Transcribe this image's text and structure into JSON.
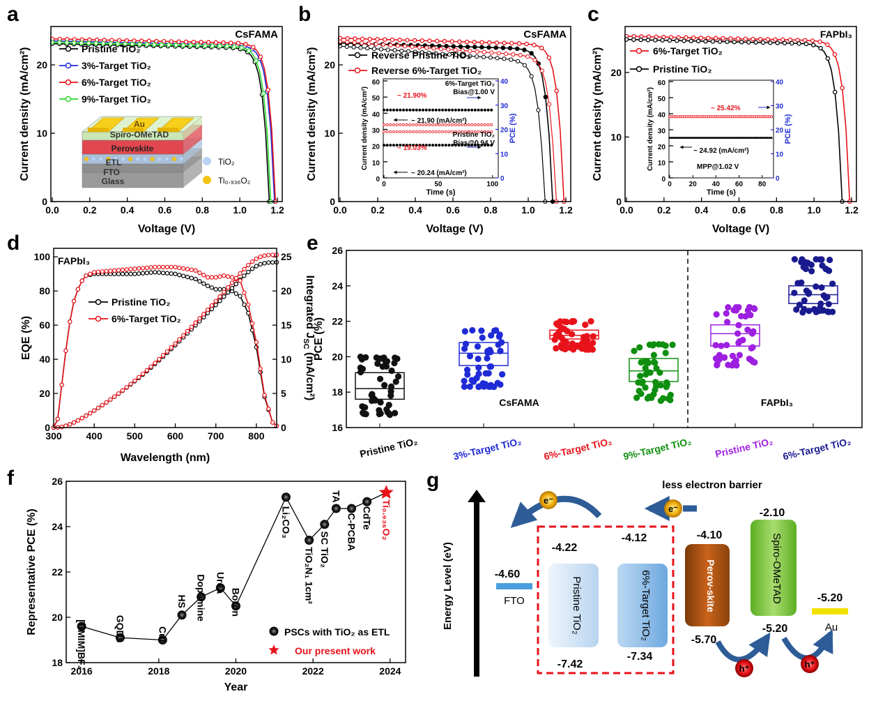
{
  "panels": {
    "a": {
      "letter": "a",
      "corner": "CsFAMA",
      "xlabel": "Voltage (V)",
      "ylabel": "Current density (mA/cm²)",
      "xticks": [
        "0.0",
        "0.2",
        "0.4",
        "0.6",
        "0.8",
        "1.0",
        "1.2"
      ],
      "yticks": [
        "0",
        "10",
        "20"
      ],
      "legend": [
        "Pristine TiO₂",
        "3%-Target TiO₂",
        "6%-Target TiO₂",
        "9%-Target TiO₂"
      ],
      "layers": [
        "Au",
        "Spiro-OMeTAD",
        "Perovskite",
        "ETL",
        "FTO",
        "Glass"
      ],
      "dots": [
        "TiO₂",
        "Ti₀.₉₃₆O₂"
      ]
    },
    "b": {
      "letter": "b",
      "corner": "CsFAMA",
      "xlabel": "Voltage (V)",
      "ylabel": "Current density (mA/cm²)",
      "xticks": [
        "0.0",
        "0.2",
        "0.4",
        "0.6",
        "0.8",
        "1.0",
        "1.2"
      ],
      "yticks": [
        "0",
        "10",
        "20"
      ],
      "legend": [
        "Reverse Pristine TiO₂",
        "Reverse 6%-Target TiO₂"
      ],
      "inset": {
        "xlabel": "Time (s)",
        "ylabel": "Current density (mA/cm²)",
        "y2label": "PCE (%)",
        "xticks": [
          "0",
          "50",
          "100"
        ],
        "yticks": [
          "0",
          "10",
          "20",
          "30",
          "40",
          "50",
          "60"
        ],
        "y2ticks": [
          "0",
          "10",
          "20",
          "30",
          "40"
        ],
        "notes": [
          "6%-Target TiO₂",
          "Bias@1.00 V",
          "~ 21.90%",
          "~ 21.90 (mA/cm²)",
          "Pristine TiO₂",
          "Bias@0.94 V",
          "~ 19.03%",
          "~ 20.24 (mA/cm²)"
        ]
      }
    },
    "c": {
      "letter": "c",
      "corner": "FAPbI₃",
      "xlabel": "Voltage (V)",
      "ylabel": "Current density (mA/cm²)",
      "xticks": [
        "0.0",
        "0.2",
        "0.4",
        "0.6",
        "0.8",
        "1.0",
        "1.2"
      ],
      "yticks": [
        "0",
        "10",
        "20"
      ],
      "legend": [
        "6%-Target TiO₂",
        "Pristine TiO₂"
      ],
      "inset": {
        "xlabel": "Time (s)",
        "ylabel": "Current density (mA/cm²)",
        "y2label": "PCE (%)",
        "xticks": [
          "0",
          "20",
          "40",
          "60",
          "80"
        ],
        "yticks": [
          "0",
          "10",
          "20",
          "30",
          "40",
          "50",
          "60"
        ],
        "y2ticks": [
          "0",
          "10",
          "20",
          "30",
          "40"
        ],
        "notes": [
          "~ 25.42%",
          "~ 24.92 (mA/cm²)",
          "MPP@1.02 V"
        ]
      }
    },
    "d": {
      "letter": "d",
      "corner": "FAPbI₃",
      "xlabel": "Wavelength (nm)",
      "ylabel": "EQE (%)",
      "y2label": "Integrated J",
      "y2sub": "SC",
      "y2unit": " (mA/cm²)",
      "xticks": [
        "300",
        "400",
        "500",
        "600",
        "700",
        "800"
      ],
      "yticks": [
        "0",
        "20",
        "40",
        "60",
        "80",
        "100"
      ],
      "y2ticks": [
        "0",
        "5",
        "10",
        "15",
        "20",
        "25"
      ],
      "legend": [
        "Pristine TiO₂",
        "6%-Target TiO₂"
      ]
    },
    "e": {
      "letter": "e",
      "ylabel": "PCE (%)",
      "yticks": [
        "16",
        "18",
        "20",
        "22",
        "24",
        "26"
      ],
      "groups": [
        "Pristine TiO₂",
        "3%-Target TiO₂",
        "6%-Target TiO₂",
        "9%-Target TiO₂",
        "Pristine TiO₂",
        "6%-Target TiO₂"
      ],
      "sections": [
        "CsFAMA",
        "FAPbI₃"
      ]
    },
    "f": {
      "letter": "f",
      "xlabel": "Year",
      "ylabel": "Representative PCE (%)",
      "xticks": [
        "2016",
        "2018",
        "2020",
        "2022",
        "2024"
      ],
      "yticks": [
        "18",
        "20",
        "22",
        "24",
        "26"
      ],
      "legend": [
        "PSCs with TiO₂ as ETL",
        "Our present work"
      ],
      "labels": [
        "[BMIM]BF₄",
        "GQDs",
        "CuI",
        "HS",
        "Dopamine",
        "Urea",
        "Boron",
        "Li₂CO₃",
        "TiO₂N₁ 1cm²",
        "SC TiO₂",
        "TA",
        "C-PCBA",
        "CdTe",
        "Ti₀.₉₃₆O₂"
      ]
    },
    "g": {
      "letter": "g",
      "yaxis": "Energy Level (eV)",
      "barrier": "less electron barrier",
      "electron": "e⁻",
      "hole": "h⁺",
      "levels": {
        "fto": "-4.60",
        "fto_label": "FTO",
        "p_cb": "-4.22",
        "p_vb": "-7.42",
        "p_label": "Pristine TiO₂",
        "t_cb": "-4.12",
        "t_vb": "-7.34",
        "t_label": "6%-Target TiO₂",
        "pv_cb": "-4.10",
        "pv_vb": "-5.70",
        "pv_label": "Perov-skite",
        "sp_cb": "-2.10",
        "sp_vb": "-5.20",
        "sp_label": "Spiro-OMeTAD",
        "au": "-5.20",
        "au_label": "Au"
      }
    }
  },
  "chart_data": [
    {
      "type": "line",
      "panel": "a",
      "xlabel": "Voltage (V)",
      "ylabel": "Current density (mA/cm²)",
      "xlim": [
        0,
        1.2
      ],
      "ylim": [
        0,
        25
      ],
      "series": [
        {
          "name": "Pristine TiO₂",
          "color": "#000000",
          "jsc": 23.1,
          "voc": 1.157
        },
        {
          "name": "3%-Target TiO₂",
          "color": "#1f2bd6",
          "jsc": 23.5,
          "voc": 1.185
        },
        {
          "name": "6%-Target TiO₂",
          "color": "#e8121a",
          "jsc": 23.8,
          "voc": 1.19
        },
        {
          "name": "9%-Target TiO₂",
          "color": "#2bd82b",
          "jsc": 23.3,
          "voc": 1.165
        }
      ]
    },
    {
      "type": "line",
      "panel": "b",
      "xlabel": "Voltage (V)",
      "ylabel": "Current density (mA/cm²)",
      "xlim": [
        0,
        1.2
      ],
      "ylim": [
        0,
        25
      ],
      "series": [
        {
          "name": "Reverse Pristine TiO₂",
          "color": "#000000",
          "jsc": 23.2,
          "voc": 1.13
        },
        {
          "name": "Reverse 6%-Target TiO₂",
          "color": "#e8121a",
          "jsc": 23.9,
          "voc": 1.19
        }
      ]
    },
    {
      "type": "line",
      "panel": "c",
      "xlabel": "Voltage (V)",
      "ylabel": "Current density (mA/cm²)",
      "xlim": [
        0,
        1.2
      ],
      "ylim": [
        0,
        27
      ],
      "series": [
        {
          "name": "6%-Target TiO₂",
          "color": "#e8121a",
          "jsc": 25.6,
          "voc": 1.19
        },
        {
          "name": "Pristine TiO₂",
          "color": "#000000",
          "jsc": 25.1,
          "voc": 1.15
        }
      ]
    },
    {
      "type": "line",
      "panel": "d",
      "xlabel": "Wavelength (nm)",
      "ylabel": "EQE (%)",
      "xlim": [
        300,
        850
      ],
      "ylim": [
        0,
        105
      ],
      "y2lim": [
        0,
        26.25
      ],
      "x": [
        300,
        310,
        320,
        330,
        340,
        350,
        360,
        370,
        380,
        400,
        450,
        500,
        550,
        600,
        650,
        680,
        700,
        720,
        740,
        760,
        780,
        800,
        820,
        840,
        850
      ],
      "series": [
        {
          "name": "Pristine TiO₂",
          "color": "#000000",
          "values": [
            0,
            5,
            25,
            45,
            62,
            74,
            81,
            86,
            89,
            90,
            90,
            90,
            91,
            90,
            87,
            83,
            81,
            81,
            80,
            77,
            67,
            47,
            18,
            3,
            1
          ],
          "integrated_end": 24.2
        },
        {
          "name": "6%-Target TiO₂",
          "color": "#e8121a",
          "values": [
            0,
            5,
            25,
            45,
            62,
            74,
            81,
            86,
            89,
            91,
            92,
            93,
            94,
            94,
            92,
            88,
            88,
            89,
            88,
            86,
            72,
            50,
            19,
            3,
            1
          ],
          "integrated_end": 25.3
        }
      ]
    },
    {
      "type": "scatter",
      "panel": "e",
      "ylabel": "PCE (%)",
      "ylim": [
        16,
        26
      ],
      "categories": [
        "Pristine TiO₂",
        "3%-Target TiO₂",
        "6%-Target TiO₂",
        "9%-Target TiO₂",
        "Pristine TiO₂",
        "6%-Target TiO₂"
      ],
      "series": [
        {
          "name": "Pristine TiO₂",
          "color": "#111111",
          "min": 16.7,
          "q1": 17.6,
          "median": 18.2,
          "q3": 19.1,
          "max": 20.0
        },
        {
          "name": "3%-Target TiO₂",
          "color": "#1f2bd6",
          "min": 18.3,
          "q1": 19.5,
          "median": 20.2,
          "q3": 20.8,
          "max": 21.5
        },
        {
          "name": "6%-Target TiO₂",
          "color": "#e8121a",
          "min": 20.4,
          "q1": 21.0,
          "median": 21.2,
          "q3": 21.5,
          "max": 22.0
        },
        {
          "name": "9%-Target TiO₂",
          "color": "#0f8f0f",
          "min": 17.5,
          "q1": 18.6,
          "median": 19.2,
          "q3": 19.9,
          "max": 20.7
        },
        {
          "name": "Pristine TiO₂",
          "color": "#9d1fe0",
          "min": 19.5,
          "q1": 20.6,
          "median": 21.3,
          "q3": 21.8,
          "max": 22.8
        },
        {
          "name": "6%-Target TiO₂",
          "color": "#1a1a8f",
          "min": 22.5,
          "q1": 23.0,
          "median": 23.5,
          "q3": 24.0,
          "max": 25.5
        }
      ]
    },
    {
      "type": "scatter",
      "panel": "f",
      "xlabel": "Year",
      "ylabel": "Representative PCE (%)",
      "xlim": [
        2016,
        2024
      ],
      "ylim": [
        18,
        26
      ],
      "series": [
        {
          "name": "PSCs with TiO₂ as ETL",
          "x": [
            2016,
            2017,
            2018.1,
            2018.6,
            2019.1,
            2019.6,
            2020,
            2021.3,
            2021.9,
            2022.3,
            2022.6,
            2023,
            2023.4
          ],
          "y": [
            19.6,
            19.1,
            19.0,
            20.1,
            20.9,
            21.3,
            20.5,
            25.3,
            23.4,
            24.1,
            24.8,
            24.8,
            25.1
          ]
        },
        {
          "name": "Our present work",
          "x": [
            2023.9
          ],
          "y": [
            25.5
          ]
        }
      ]
    }
  ]
}
